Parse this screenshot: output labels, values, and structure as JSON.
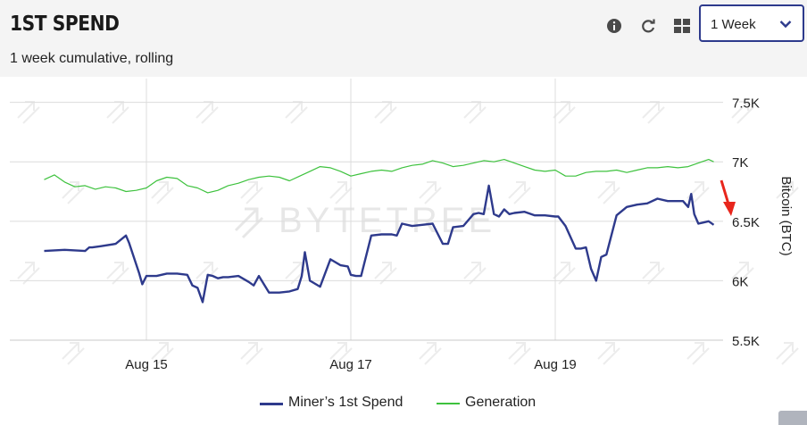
{
  "header": {
    "title": "1ST SPEND",
    "subtitle": "1 week cumulative, rolling",
    "range_select": {
      "value": "1 Week"
    }
  },
  "toolbar": {
    "icons": [
      "info-icon",
      "refresh-icon",
      "grid-icon"
    ]
  },
  "watermark": "BYTETREE",
  "chart_data": {
    "type": "line",
    "title": "",
    "xlabel": "",
    "ylabel": "Bitcoin (BTC)",
    "y_axis_position": "right",
    "ylim": [
      5500,
      7700
    ],
    "xlim": [
      14.0,
      20.6
    ],
    "y_ticks": [
      5500,
      6000,
      6500,
      7000,
      7500
    ],
    "y_tick_labels": [
      "5.5K",
      "6K",
      "6.5K",
      "7K",
      "7.5K"
    ],
    "x_ticks": [
      15,
      17,
      19
    ],
    "x_tick_labels": [
      "Aug 15",
      "Aug 17",
      "Aug 19"
    ],
    "grid": true,
    "legend_placement": "bottom-center",
    "series": [
      {
        "name": "Miner’s 1st Spend",
        "color": "#2e3a8c",
        "x": [
          14.0,
          14.2,
          14.4,
          14.44,
          14.47,
          14.55,
          14.7,
          14.8,
          14.83,
          14.93,
          14.96,
          15.0,
          15.1,
          15.2,
          15.3,
          15.4,
          15.45,
          15.5,
          15.55,
          15.6,
          15.65,
          15.7,
          15.75,
          15.8,
          15.9,
          16.0,
          16.05,
          16.1,
          16.2,
          16.3,
          16.4,
          16.48,
          16.52,
          16.55,
          16.6,
          16.7,
          16.8,
          16.9,
          16.97,
          17.0,
          17.05,
          17.1,
          17.2,
          17.3,
          17.4,
          17.45,
          17.5,
          17.6,
          17.7,
          17.8,
          17.9,
          17.95,
          18.0,
          18.1,
          18.2,
          18.25,
          18.3,
          18.35,
          18.4,
          18.45,
          18.5,
          18.55,
          18.6,
          18.7,
          18.8,
          18.9,
          19.0,
          19.03,
          19.1,
          19.2,
          19.25,
          19.3,
          19.35,
          19.4,
          19.45,
          19.5,
          19.6,
          19.7,
          19.8,
          19.9,
          20.0,
          20.1,
          20.2,
          20.25,
          20.3,
          20.33,
          20.36,
          20.4,
          20.45,
          20.5,
          20.55
        ],
        "values": [
          6250,
          6260,
          6250,
          6280,
          6280,
          6290,
          6310,
          6380,
          6320,
          6060,
          5970,
          6040,
          6040,
          6060,
          6060,
          6050,
          5960,
          5940,
          5820,
          6050,
          6040,
          6020,
          6030,
          6030,
          6040,
          5990,
          5960,
          6040,
          5900,
          5900,
          5910,
          5930,
          6040,
          6240,
          6000,
          5950,
          6180,
          6130,
          6120,
          6050,
          6040,
          6040,
          6380,
          6390,
          6390,
          6380,
          6480,
          6460,
          6470,
          6480,
          6310,
          6310,
          6450,
          6460,
          6560,
          6570,
          6560,
          6800,
          6560,
          6540,
          6600,
          6560,
          6570,
          6580,
          6550,
          6550,
          6540,
          6540,
          6460,
          6270,
          6270,
          6280,
          6100,
          6000,
          6200,
          6220,
          6550,
          6620,
          6640,
          6650,
          6690,
          6670,
          6670,
          6670,
          6620,
          6730,
          6560,
          6480,
          6490,
          6500,
          6470
        ]
      },
      {
        "name": "Generation",
        "color": "#3ec23e",
        "x": [
          14.0,
          14.1,
          14.2,
          14.3,
          14.4,
          14.5,
          14.6,
          14.7,
          14.8,
          14.9,
          15.0,
          15.1,
          15.2,
          15.3,
          15.4,
          15.5,
          15.6,
          15.7,
          15.8,
          15.9,
          16.0,
          16.1,
          16.2,
          16.3,
          16.4,
          16.5,
          16.6,
          16.7,
          16.8,
          16.9,
          17.0,
          17.1,
          17.2,
          17.3,
          17.4,
          17.5,
          17.6,
          17.7,
          17.8,
          17.9,
          18.0,
          18.1,
          18.2,
          18.3,
          18.4,
          18.5,
          18.6,
          18.7,
          18.8,
          18.9,
          19.0,
          19.1,
          19.2,
          19.3,
          19.4,
          19.5,
          19.6,
          19.7,
          19.8,
          19.9,
          20.0,
          20.1,
          20.2,
          20.3,
          20.4,
          20.5,
          20.55
        ],
        "values": [
          6850,
          6890,
          6830,
          6790,
          6800,
          6770,
          6790,
          6780,
          6750,
          6760,
          6780,
          6840,
          6870,
          6860,
          6800,
          6780,
          6740,
          6760,
          6800,
          6820,
          6850,
          6870,
          6880,
          6870,
          6840,
          6880,
          6920,
          6960,
          6950,
          6920,
          6880,
          6900,
          6920,
          6930,
          6920,
          6950,
          6970,
          6980,
          7010,
          6990,
          6960,
          6970,
          6990,
          7010,
          7000,
          7020,
          6990,
          6960,
          6930,
          6920,
          6930,
          6880,
          6880,
          6910,
          6920,
          6920,
          6930,
          6910,
          6930,
          6950,
          6950,
          6960,
          6950,
          6960,
          6990,
          7020,
          7000
        ]
      }
    ],
    "annotations": [
      {
        "type": "arrow",
        "color": "#e8261c",
        "points_to": "end of Miner’s 1st Spend"
      }
    ]
  }
}
